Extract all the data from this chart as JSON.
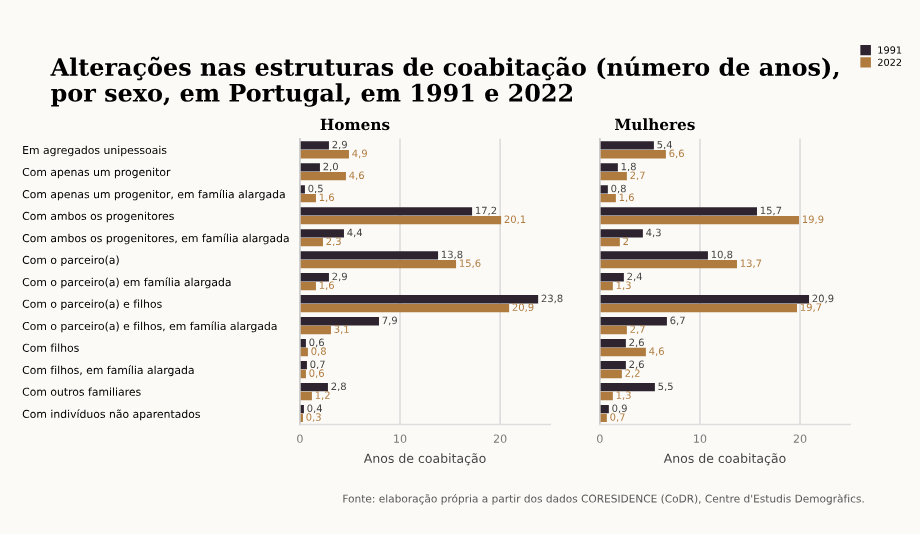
{
  "chart_data": [
    {
      "type": "bar",
      "orientation": "horizontal",
      "title": "Alterações nas estruturas de coabitação (número de anos),\npor sexo, em Portugal, em 1991 e 2022",
      "subtitle": "Homens",
      "xlabel": "Anos de coabitação",
      "categories": [
        "Em agregados unipessoais",
        "Com apenas um progenitor",
        "Com apenas um progenitor, em família alargada",
        "Com ambos os progenitores",
        "Com ambos os progenitores, em família alargada",
        "Com o parceiro(a)",
        "Com o parceiro(a) em família alargada",
        "Com o parceiro(a) e filhos",
        "Com o parceiro(a) e filhos, em família alargada",
        "Com filhos",
        "Com filhos, em família alargada",
        "Com outros familiares",
        "Com indivíduos não aparentados"
      ],
      "series": [
        {
          "name": "1991",
          "color": "#2e2430",
          "values": [
            2.9,
            2.0,
            0.5,
            17.2,
            4.4,
            13.8,
            2.9,
            23.8,
            7.9,
            0.6,
            0.7,
            2.8,
            0.4
          ],
          "value_labels": [
            "2,9",
            "2,0",
            "0,5",
            "17,2",
            "4,4",
            "13,8",
            "2,9",
            "23,8",
            "7,9",
            "0,6",
            "0,7",
            "2,8",
            "0,4"
          ]
        },
        {
          "name": "2022",
          "color": "#b07b3e",
          "values": [
            4.9,
            4.6,
            1.6,
            20.1,
            2.3,
            15.6,
            1.6,
            20.9,
            3.1,
            0.8,
            0.6,
            1.2,
            0.3
          ],
          "value_labels": [
            "4,9",
            "4,6",
            "1,6",
            "20,1",
            "2,3",
            "15,6",
            "1,6",
            "20,9",
            "3,1",
            "0,8",
            "0,6",
            "1,2",
            "0,3"
          ]
        }
      ],
      "xlim": [
        0,
        25
      ],
      "xticks": [
        0,
        10,
        20
      ],
      "grid": "x",
      "legend": "top right",
      "annotations": [
        "Fonte: elaboração própria a partir dos dados CORESIDENCE (CoDR), Centre d'Estudis Demogràfics."
      ]
    },
    {
      "type": "bar",
      "orientation": "horizontal",
      "subtitle": "Mulheres",
      "xlabel": "Anos de coabitação",
      "categories": [
        null,
        null,
        null,
        null,
        null,
        null,
        null,
        null,
        null,
        null,
        null,
        null,
        null
      ],
      "series": [
        {
          "name": "1991",
          "color": "#2e2430",
          "values": [
            5.4,
            1.8,
            0.8,
            15.7,
            4.3,
            10.8,
            2.4,
            20.9,
            6.7,
            2.6,
            2.6,
            5.5,
            0.9
          ],
          "value_labels": [
            "5,4",
            "1,8",
            "0,8",
            "15,7",
            "4,3",
            "10,8",
            "2,4",
            "20,9",
            "6,7",
            "2,6",
            "2,6",
            "5,5",
            "0,9"
          ]
        },
        {
          "name": "2022",
          "color": "#b07b3e",
          "values": [
            6.6,
            2.7,
            1.6,
            19.9,
            2.0,
            13.7,
            1.3,
            19.7,
            2.7,
            4.6,
            2.2,
            1.3,
            0.7
          ],
          "value_labels": [
            "6,6",
            "2,7",
            "1,6",
            "19,9",
            "2",
            "13,7",
            "1,3",
            "19,7",
            "2,7",
            "4,6",
            "2,2",
            "1,3",
            "0,7"
          ]
        }
      ],
      "xlim": [
        0,
        25
      ],
      "xticks": [
        0,
        10,
        20
      ],
      "grid": "x"
    }
  ]
}
